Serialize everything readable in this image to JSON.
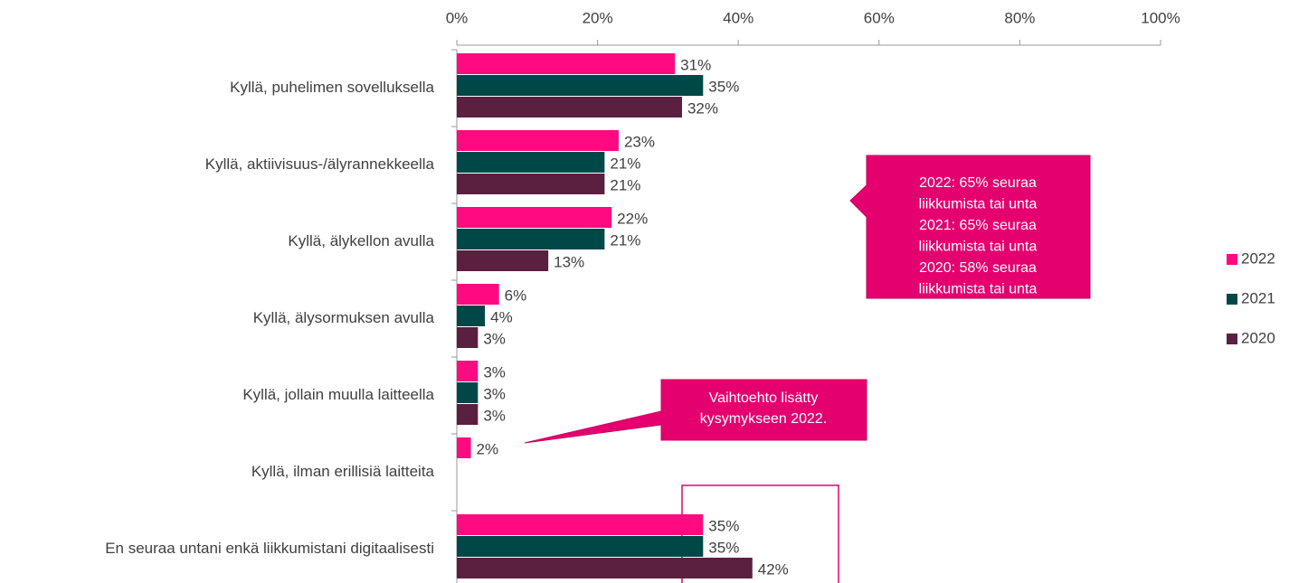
{
  "chart_data": {
    "type": "bar",
    "orientation": "horizontal",
    "categories": [
      "Kyllä, puhelimen sovelluksella",
      "Kyllä, aktiivisuus-/älyrannekkeella",
      "Kyllä, älykellon avulla",
      "Kyllä, älysormuksen avulla",
      "Kyllä, jollain muulla laitteella",
      "Kyllä, ilman erillisiä laitteita",
      "En seuraa untani enkä liikkumistani digitaalisesti"
    ],
    "series": [
      {
        "name": "2022",
        "color": "#ff0a80",
        "values": [
          31,
          23,
          22,
          6,
          3,
          2,
          35
        ],
        "value_labels": [
          "31%",
          "23%",
          "22%",
          "6%",
          "3%",
          "2%",
          "35%"
        ]
      },
      {
        "name": "2021",
        "color": "#004848",
        "values": [
          35,
          21,
          21,
          4,
          3,
          null,
          35
        ],
        "value_labels": [
          "35%",
          "21%",
          "21%",
          "4%",
          "3%",
          null,
          "35%"
        ]
      },
      {
        "name": "2020",
        "color": "#5b1f40",
        "values": [
          32,
          21,
          13,
          3,
          3,
          null,
          42
        ],
        "value_labels": [
          "32%",
          "21%",
          "13%",
          "3%",
          "3%",
          null,
          "42%"
        ]
      }
    ],
    "xlim": [
      0,
      100
    ],
    "xticks": [
      {
        "value": 0,
        "label": "0%"
      },
      {
        "value": 20,
        "label": "20%"
      },
      {
        "value": 40,
        "label": "40%"
      },
      {
        "value": 60,
        "label": "60%"
      },
      {
        "value": 80,
        "label": "80%"
      },
      {
        "value": 100,
        "label": "100%"
      }
    ],
    "legend": "right",
    "annotations": [
      {
        "lines": [
          "2022: 65% seuraa",
          "liikkumista tai unta",
          "2021: 65% seuraa",
          "liikkumista tai unta",
          "2020: 58% seuraa",
          "liikkumista tai unta"
        ]
      },
      {
        "lines": [
          "Vaihtoehto lisätty",
          "kysymykseen 2022."
        ]
      }
    ]
  }
}
